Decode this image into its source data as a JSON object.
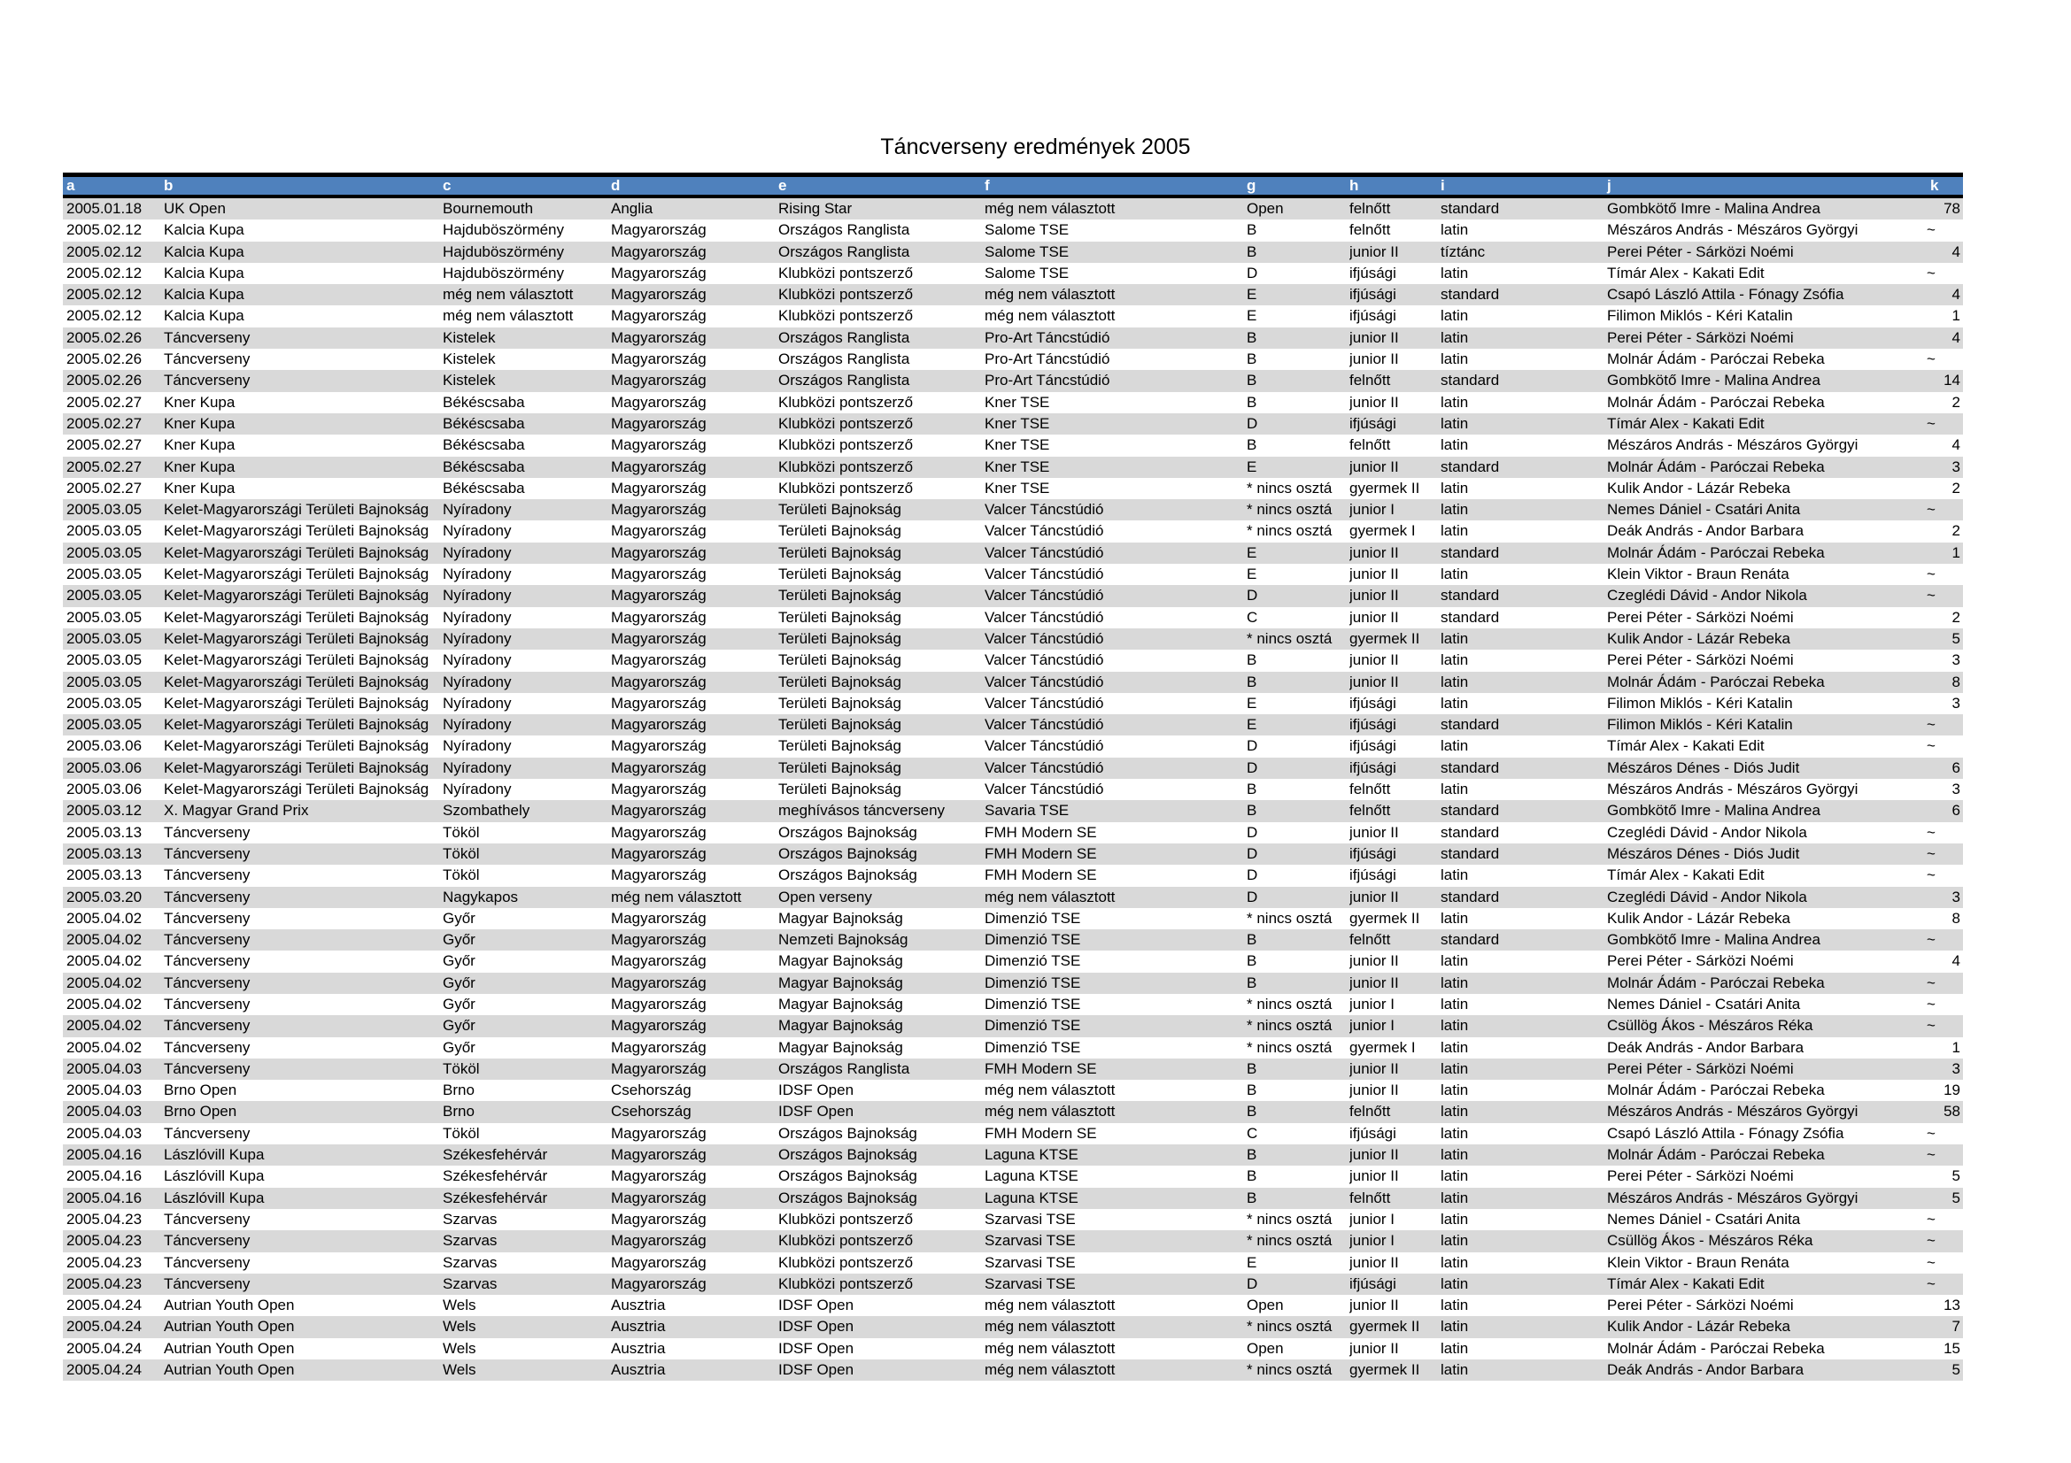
{
  "title": "Táncverseny eredmények 2005",
  "colors": {
    "header_bg": "#4f81bd",
    "header_text": "#ffffff",
    "stripe": "#d9d9d9"
  },
  "headers": [
    "a",
    "b",
    "c",
    "d",
    "e",
    "f",
    "g",
    "h",
    "i",
    "j",
    "k"
  ],
  "rows": [
    [
      "2005.01.18",
      "UK Open",
      "Bournemouth",
      "Anglia",
      "Rising Star",
      "még nem választott",
      "Open",
      "felnőtt",
      "standard",
      "Gombkötő Imre - Malina Andrea",
      "78"
    ],
    [
      "2005.02.12",
      "Kalcia Kupa",
      "Hajduböszörmény",
      "Magyarország",
      "Országos Ranglista",
      "Salome TSE",
      "B",
      "felnőtt",
      "latin",
      "Mészáros András - Mészáros Györgyi",
      "~"
    ],
    [
      "2005.02.12",
      "Kalcia Kupa",
      "Hajduböszörmény",
      "Magyarország",
      "Országos Ranglista",
      "Salome TSE",
      "B",
      "junior II",
      "tíztánc",
      "Perei Péter - Sárközi Noémi",
      "4"
    ],
    [
      "2005.02.12",
      "Kalcia Kupa",
      "Hajduböszörmény",
      "Magyarország",
      "Klubközi pontszerző",
      "Salome TSE",
      "D",
      "ifjúsági",
      "latin",
      "Tímár Alex - Kakati Edit",
      "~"
    ],
    [
      "2005.02.12",
      "Kalcia Kupa",
      "még nem választott",
      "Magyarország",
      "Klubközi pontszerző",
      "még nem választott",
      "E",
      "ifjúsági",
      "standard",
      "Csapó László Attila - Fónagy Zsófia",
      "4"
    ],
    [
      "2005.02.12",
      "Kalcia Kupa",
      "még nem választott",
      "Magyarország",
      "Klubközi pontszerző",
      "még nem választott",
      "E",
      "ifjúsági",
      "latin",
      "Filimon Miklós - Kéri Katalin",
      "1"
    ],
    [
      "2005.02.26",
      "Táncverseny",
      "Kistelek",
      "Magyarország",
      "Országos Ranglista",
      "Pro-Art Táncstúdió",
      "B",
      "junior II",
      "latin",
      "Perei Péter - Sárközi Noémi",
      "4"
    ],
    [
      "2005.02.26",
      "Táncverseny",
      "Kistelek",
      "Magyarország",
      "Országos Ranglista",
      "Pro-Art Táncstúdió",
      "B",
      "junior II",
      "latin",
      "Molnár Ádám - Paróczai Rebeka",
      "~"
    ],
    [
      "2005.02.26",
      "Táncverseny",
      "Kistelek",
      "Magyarország",
      "Országos Ranglista",
      "Pro-Art Táncstúdió",
      "B",
      "felnőtt",
      "standard",
      "Gombkötő Imre - Malina Andrea",
      "14"
    ],
    [
      "2005.02.27",
      "Kner Kupa",
      "Békéscsaba",
      "Magyarország",
      "Klubközi pontszerző",
      "Kner TSE",
      "B",
      "junior II",
      "latin",
      "Molnár Ádám - Paróczai Rebeka",
      "2"
    ],
    [
      "2005.02.27",
      "Kner Kupa",
      "Békéscsaba",
      "Magyarország",
      "Klubközi pontszerző",
      "Kner TSE",
      "D",
      "ifjúsági",
      "latin",
      "Tímár Alex - Kakati Edit",
      "~"
    ],
    [
      "2005.02.27",
      "Kner Kupa",
      "Békéscsaba",
      "Magyarország",
      "Klubközi pontszerző",
      "Kner TSE",
      "B",
      "felnőtt",
      "latin",
      "Mészáros András - Mészáros Györgyi",
      "4"
    ],
    [
      "2005.02.27",
      "Kner Kupa",
      "Békéscsaba",
      "Magyarország",
      "Klubközi pontszerző",
      "Kner TSE",
      "E",
      "junior II",
      "standard",
      "Molnár Ádám - Paróczai Rebeka",
      "3"
    ],
    [
      "2005.02.27",
      "Kner Kupa",
      "Békéscsaba",
      "Magyarország",
      "Klubközi pontszerző",
      "Kner TSE",
      "* nincs osztá",
      "gyermek II",
      "latin",
      "Kulik Andor - Lázár Rebeka",
      "2"
    ],
    [
      "2005.03.05",
      "Kelet-Magyarországi Területi Bajnokság",
      "Nyíradony",
      "Magyarország",
      "Területi Bajnokság",
      "Valcer Táncstúdió",
      "* nincs osztá",
      "junior I",
      "latin",
      "Nemes Dániel - Csatári Anita",
      "~"
    ],
    [
      "2005.03.05",
      "Kelet-Magyarországi Területi Bajnokság",
      "Nyíradony",
      "Magyarország",
      "Területi Bajnokság",
      "Valcer Táncstúdió",
      "* nincs osztá",
      "gyermek I",
      "latin",
      "Deák András - Andor Barbara",
      "2"
    ],
    [
      "2005.03.05",
      "Kelet-Magyarországi Területi Bajnokság",
      "Nyíradony",
      "Magyarország",
      "Területi Bajnokság",
      "Valcer Táncstúdió",
      "E",
      "junior II",
      "standard",
      "Molnár Ádám - Paróczai Rebeka",
      "1"
    ],
    [
      "2005.03.05",
      "Kelet-Magyarországi Területi Bajnokság",
      "Nyíradony",
      "Magyarország",
      "Területi Bajnokság",
      "Valcer Táncstúdió",
      "E",
      "junior II",
      "latin",
      "Klein Viktor - Braun Renáta",
      "~"
    ],
    [
      "2005.03.05",
      "Kelet-Magyarországi Területi Bajnokság",
      "Nyíradony",
      "Magyarország",
      "Területi Bajnokság",
      "Valcer Táncstúdió",
      "D",
      "junior II",
      "standard",
      "Czeglédi Dávid - Andor Nikola",
      "~"
    ],
    [
      "2005.03.05",
      "Kelet-Magyarországi Területi Bajnokság",
      "Nyíradony",
      "Magyarország",
      "Területi Bajnokság",
      "Valcer Táncstúdió",
      "C",
      "junior II",
      "standard",
      "Perei Péter - Sárközi Noémi",
      "2"
    ],
    [
      "2005.03.05",
      "Kelet-Magyarországi Területi Bajnokság",
      "Nyíradony",
      "Magyarország",
      "Területi Bajnokság",
      "Valcer Táncstúdió",
      "* nincs osztá",
      "gyermek II",
      "latin",
      "Kulik Andor - Lázár Rebeka",
      "5"
    ],
    [
      "2005.03.05",
      "Kelet-Magyarországi Területi Bajnokság",
      "Nyíradony",
      "Magyarország",
      "Területi Bajnokság",
      "Valcer Táncstúdió",
      "B",
      "junior II",
      "latin",
      "Perei Péter - Sárközi Noémi",
      "3"
    ],
    [
      "2005.03.05",
      "Kelet-Magyarországi Területi Bajnokság",
      "Nyíradony",
      "Magyarország",
      "Területi Bajnokság",
      "Valcer Táncstúdió",
      "B",
      "junior II",
      "latin",
      "Molnár Ádám - Paróczai Rebeka",
      "8"
    ],
    [
      "2005.03.05",
      "Kelet-Magyarországi Területi Bajnokság",
      "Nyíradony",
      "Magyarország",
      "Területi Bajnokság",
      "Valcer Táncstúdió",
      "E",
      "ifjúsági",
      "latin",
      "Filimon Miklós - Kéri Katalin",
      "3"
    ],
    [
      "2005.03.05",
      "Kelet-Magyarországi Területi Bajnokság",
      "Nyíradony",
      "Magyarország",
      "Területi Bajnokság",
      "Valcer Táncstúdió",
      "E",
      "ifjúsági",
      "standard",
      "Filimon Miklós - Kéri Katalin",
      "~"
    ],
    [
      "2005.03.06",
      "Kelet-Magyarországi Területi Bajnokság",
      "Nyíradony",
      "Magyarország",
      "Területi Bajnokság",
      "Valcer Táncstúdió",
      "D",
      "ifjúsági",
      "latin",
      "Tímár Alex - Kakati Edit",
      "~"
    ],
    [
      "2005.03.06",
      "Kelet-Magyarországi Területi Bajnokság",
      "Nyíradony",
      "Magyarország",
      "Területi Bajnokság",
      "Valcer Táncstúdió",
      "D",
      "ifjúsági",
      "standard",
      "Mészáros Dénes - Diós Judit",
      "6"
    ],
    [
      "2005.03.06",
      "Kelet-Magyarországi Területi Bajnokság",
      "Nyíradony",
      "Magyarország",
      "Területi Bajnokság",
      "Valcer Táncstúdió",
      "B",
      "felnőtt",
      "latin",
      "Mészáros András - Mészáros Györgyi",
      "3"
    ],
    [
      "2005.03.12",
      "X. Magyar Grand Prix",
      "Szombathely",
      "Magyarország",
      "meghívásos táncverseny",
      "Savaria TSE",
      "B",
      "felnőtt",
      "standard",
      "Gombkötő Imre - Malina Andrea",
      "6"
    ],
    [
      "2005.03.13",
      "Táncverseny",
      "Tököl",
      "Magyarország",
      "Országos Bajnokság",
      "FMH Modern SE",
      "D",
      "junior II",
      "standard",
      "Czeglédi Dávid - Andor Nikola",
      "~"
    ],
    [
      "2005.03.13",
      "Táncverseny",
      "Tököl",
      "Magyarország",
      "Országos Bajnokság",
      "FMH Modern SE",
      "D",
      "ifjúsági",
      "standard",
      "Mészáros Dénes - Diós Judit",
      "~"
    ],
    [
      "2005.03.13",
      "Táncverseny",
      "Tököl",
      "Magyarország",
      "Országos Bajnokság",
      "FMH Modern SE",
      "D",
      "ifjúsági",
      "latin",
      "Tímár Alex - Kakati Edit",
      "~"
    ],
    [
      "2005.03.20",
      "Táncverseny",
      "Nagykapos",
      "még nem választott",
      "Open verseny",
      "még nem választott",
      "D",
      "junior II",
      "standard",
      "Czeglédi Dávid - Andor Nikola",
      "3"
    ],
    [
      "2005.04.02",
      "Táncverseny",
      "Győr",
      "Magyarország",
      "Magyar Bajnokság",
      "Dimenzió TSE",
      "* nincs osztá",
      "gyermek II",
      "latin",
      "Kulik Andor - Lázár Rebeka",
      "8"
    ],
    [
      "2005.04.02",
      "Táncverseny",
      "Győr",
      "Magyarország",
      "Nemzeti Bajnokság",
      "Dimenzió TSE",
      "B",
      "felnőtt",
      "standard",
      "Gombkötő Imre - Malina Andrea",
      "~"
    ],
    [
      "2005.04.02",
      "Táncverseny",
      "Győr",
      "Magyarország",
      "Magyar Bajnokság",
      "Dimenzió TSE",
      "B",
      "junior II",
      "latin",
      "Perei Péter - Sárközi Noémi",
      "4"
    ],
    [
      "2005.04.02",
      "Táncverseny",
      "Győr",
      "Magyarország",
      "Magyar Bajnokság",
      "Dimenzió TSE",
      "B",
      "junior II",
      "latin",
      "Molnár Ádám - Paróczai Rebeka",
      "~"
    ],
    [
      "2005.04.02",
      "Táncverseny",
      "Győr",
      "Magyarország",
      "Magyar Bajnokság",
      "Dimenzió TSE",
      "* nincs osztá",
      "junior I",
      "latin",
      "Nemes Dániel - Csatári Anita",
      "~"
    ],
    [
      "2005.04.02",
      "Táncverseny",
      "Győr",
      "Magyarország",
      "Magyar Bajnokság",
      "Dimenzió TSE",
      "* nincs osztá",
      "junior I",
      "latin",
      "Csüllög Ákos - Mészáros Réka",
      "~"
    ],
    [
      "2005.04.02",
      "Táncverseny",
      "Győr",
      "Magyarország",
      "Magyar Bajnokság",
      "Dimenzió TSE",
      "* nincs osztá",
      "gyermek I",
      "latin",
      "Deák András - Andor Barbara",
      "1"
    ],
    [
      "2005.04.03",
      "Táncverseny",
      "Tököl",
      "Magyarország",
      "Országos Ranglista",
      "FMH Modern SE",
      "B",
      "junior II",
      "latin",
      "Perei Péter - Sárközi Noémi",
      "3"
    ],
    [
      "2005.04.03",
      "Brno Open",
      "Brno",
      "Csehország",
      "IDSF Open",
      "még nem választott",
      "B",
      "junior II",
      "latin",
      "Molnár Ádám - Paróczai Rebeka",
      "19"
    ],
    [
      "2005.04.03",
      "Brno Open",
      "Brno",
      "Csehország",
      "IDSF Open",
      "még nem választott",
      "B",
      "felnőtt",
      "latin",
      "Mészáros András - Mészáros Györgyi",
      "58"
    ],
    [
      "2005.04.03",
      "Táncverseny",
      "Tököl",
      "Magyarország",
      "Országos Bajnokság",
      "FMH Modern SE",
      "C",
      "ifjúsági",
      "latin",
      "Csapó László Attila - Fónagy Zsófia",
      "~"
    ],
    [
      "2005.04.16",
      "Lászlóvill Kupa",
      "Székesfehérvár",
      "Magyarország",
      "Országos Bajnokság",
      "Laguna KTSE",
      "B",
      "junior II",
      "latin",
      "Molnár Ádám - Paróczai Rebeka",
      "~"
    ],
    [
      "2005.04.16",
      "Lászlóvill Kupa",
      "Székesfehérvár",
      "Magyarország",
      "Országos Bajnokság",
      "Laguna KTSE",
      "B",
      "junior II",
      "latin",
      "Perei Péter - Sárközi Noémi",
      "5"
    ],
    [
      "2005.04.16",
      "Lászlóvill Kupa",
      "Székesfehérvár",
      "Magyarország",
      "Országos Bajnokság",
      "Laguna KTSE",
      "B",
      "felnőtt",
      "latin",
      "Mészáros András - Mészáros Györgyi",
      "5"
    ],
    [
      "2005.04.23",
      "Táncverseny",
      "Szarvas",
      "Magyarország",
      "Klubközi pontszerző",
      "Szarvasi TSE",
      "* nincs osztá",
      "junior I",
      "latin",
      "Nemes Dániel - Csatári Anita",
      "~"
    ],
    [
      "2005.04.23",
      "Táncverseny",
      "Szarvas",
      "Magyarország",
      "Klubközi pontszerző",
      "Szarvasi TSE",
      "* nincs osztá",
      "junior I",
      "latin",
      "Csüllög Ákos - Mészáros Réka",
      "~"
    ],
    [
      "2005.04.23",
      "Táncverseny",
      "Szarvas",
      "Magyarország",
      "Klubközi pontszerző",
      "Szarvasi TSE",
      "E",
      "junior II",
      "latin",
      "Klein Viktor - Braun Renáta",
      "~"
    ],
    [
      "2005.04.23",
      "Táncverseny",
      "Szarvas",
      "Magyarország",
      "Klubközi pontszerző",
      "Szarvasi TSE",
      "D",
      "ifjúsági",
      "latin",
      "Tímár Alex - Kakati Edit",
      "~"
    ],
    [
      "2005.04.24",
      "Autrian Youth Open",
      "Wels",
      "Ausztria",
      "IDSF Open",
      "még nem választott",
      "Open",
      "junior II",
      "latin",
      "Perei Péter - Sárközi Noémi",
      "13"
    ],
    [
      "2005.04.24",
      "Autrian Youth Open",
      "Wels",
      "Ausztria",
      "IDSF Open",
      "még nem választott",
      "* nincs osztá",
      "gyermek II",
      "latin",
      "Kulik Andor - Lázár Rebeka",
      "7"
    ],
    [
      "2005.04.24",
      "Autrian Youth Open",
      "Wels",
      "Ausztria",
      "IDSF Open",
      "még nem választott",
      "Open",
      "junior II",
      "latin",
      "Molnár Ádám - Paróczai Rebeka",
      "15"
    ],
    [
      "2005.04.24",
      "Autrian Youth Open",
      "Wels",
      "Ausztria",
      "IDSF Open",
      "még nem választott",
      "* nincs osztá",
      "gyermek II",
      "latin",
      "Deák András - Andor Barbara",
      "5"
    ]
  ]
}
